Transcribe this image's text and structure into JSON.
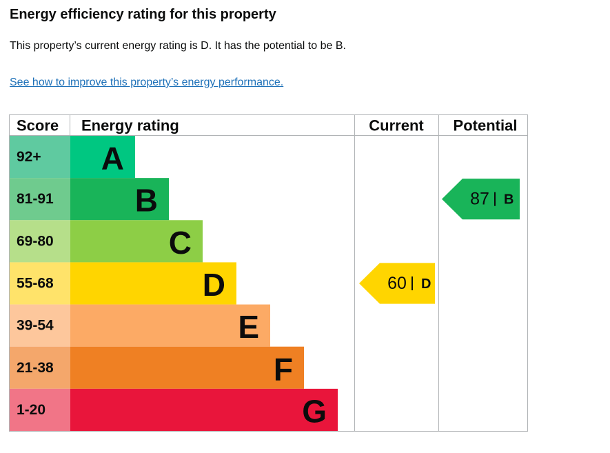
{
  "header": {
    "title": "Energy efficiency rating for this property",
    "description": "This property’s current energy rating is D. It has the potential to be B.",
    "link": "See how to improve this property’s energy performance."
  },
  "table": {
    "headers": [
      "Score",
      "Energy rating",
      "Current",
      "Potential"
    ],
    "bands": [
      {
        "score": "92+",
        "letter": "A",
        "color": "#00c781",
        "score_color": "#5fcaa0"
      },
      {
        "score": "81-91",
        "letter": "B",
        "color": "#19b459",
        "score_color": "#6fcb8e"
      },
      {
        "score": "69-80",
        "letter": "C",
        "color": "#8dce46",
        "score_color": "#b6df8a"
      },
      {
        "score": "55-68",
        "letter": "D",
        "color": "#ffd500",
        "score_color": "#ffe36a"
      },
      {
        "score": "39-54",
        "letter": "E",
        "color": "#fcaa65",
        "score_color": "#fdc79c"
      },
      {
        "score": "21-38",
        "letter": "F",
        "color": "#ef8023",
        "score_color": "#f4a76b"
      },
      {
        "score": "1-20",
        "letter": "G",
        "color": "#e9153b",
        "score_color": "#f17587"
      }
    ],
    "current": {
      "value": 60,
      "letter": "D"
    },
    "potential": {
      "value": 87,
      "letter": "B"
    }
  }
}
